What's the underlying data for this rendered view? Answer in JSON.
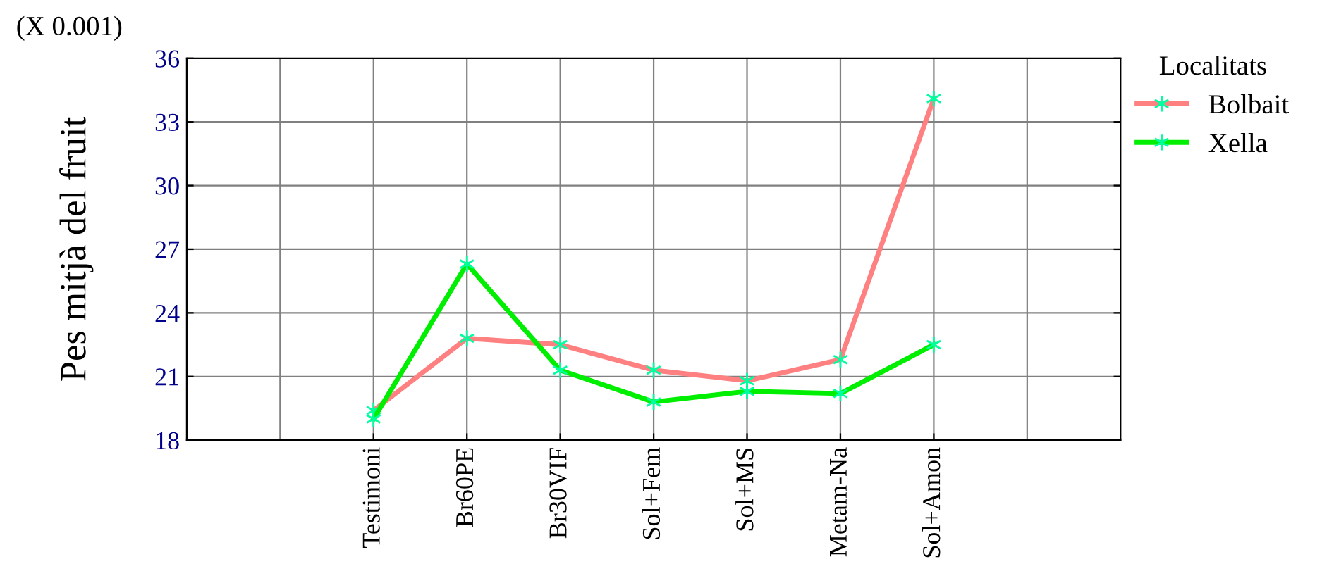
{
  "chart_data": {
    "type": "line",
    "ylabel": "Pes mitjà del fruit",
    "legend_title": "Localitats",
    "annotations": [
      "(X 0.001)"
    ],
    "categories": [
      "Testimoni",
      "Br60PE",
      "Br30VIF",
      "Sol+Fem",
      "Sol+MS",
      "Metam-Na",
      "Sol+Amon"
    ],
    "series": [
      {
        "name": "Bolbait",
        "color": "#ff8080",
        "values": [
          19.4,
          22.8,
          22.5,
          21.3,
          20.8,
          21.8,
          34.1
        ]
      },
      {
        "name": "Xella",
        "color": "#00ee00",
        "values": [
          19.0,
          26.3,
          21.3,
          19.8,
          20.3,
          20.2,
          22.5
        ]
      }
    ],
    "ylim": [
      18,
      36
    ],
    "yticks": [
      18,
      21,
      24,
      27,
      30,
      33,
      36
    ],
    "grid": true,
    "legend": "top right",
    "marker": "cross",
    "line_style": "solid"
  }
}
